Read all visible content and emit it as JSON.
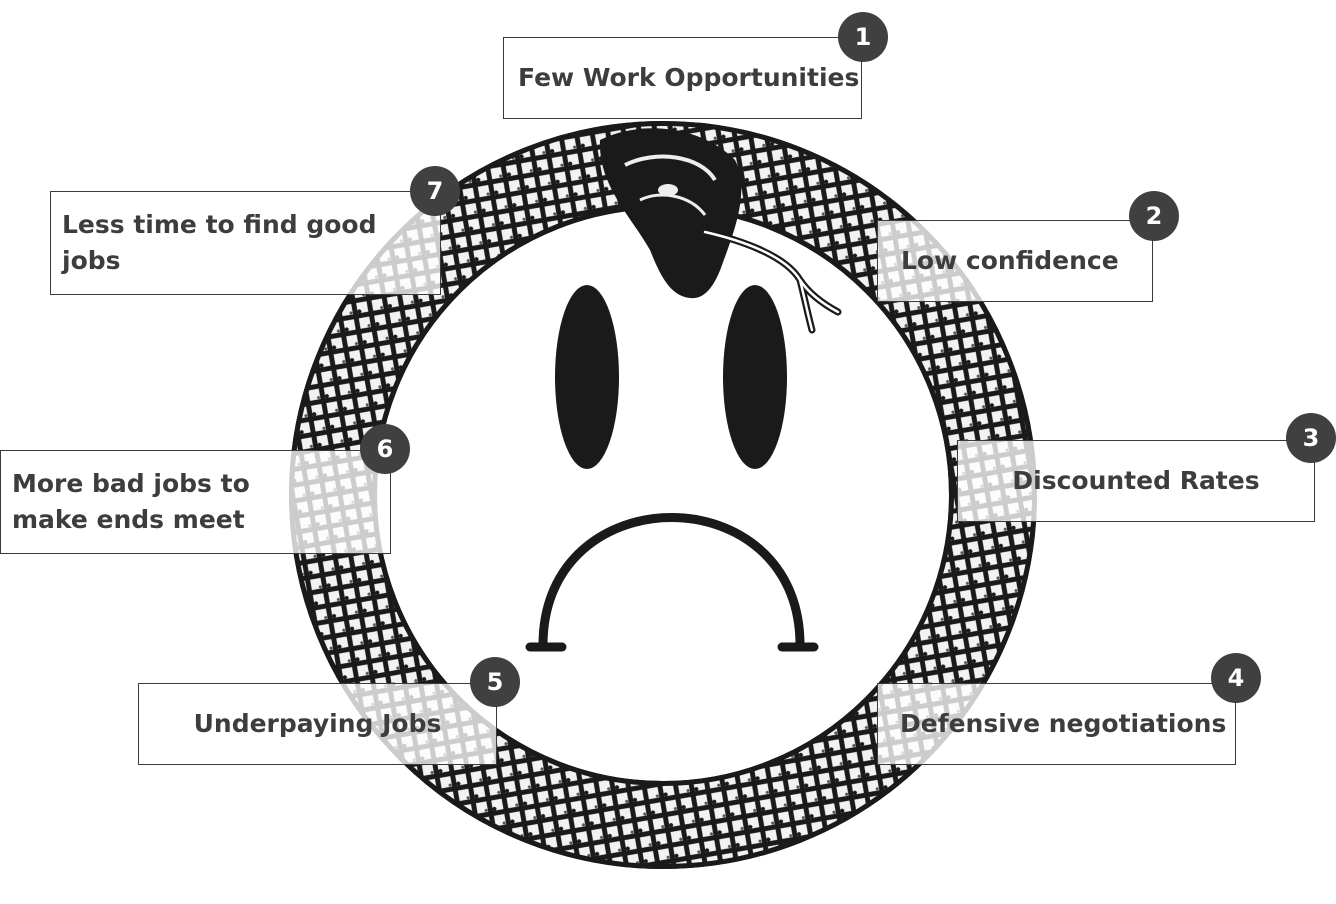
{
  "diagram": {
    "title": "",
    "steps": [
      {
        "number": "1",
        "label": "Few Work Opportunities"
      },
      {
        "number": "2",
        "label": "Low confidence"
      },
      {
        "number": "3",
        "label": "Discounted Rates"
      },
      {
        "number": "4",
        "label": "Defensive negotiations"
      },
      {
        "number": "5",
        "label": "Underpaying Jobs"
      },
      {
        "number": "6",
        "label": "More bad jobs to make ends meet"
      },
      {
        "number": "7",
        "label": "Less time to find good jobs"
      }
    ],
    "illustration": "ouroboros-snake-sad-face",
    "colors": {
      "ink": "#1a1a1a",
      "box_border": "#3a3a3a",
      "badge_fill": "#404040",
      "text": "#3d3d3d"
    }
  }
}
